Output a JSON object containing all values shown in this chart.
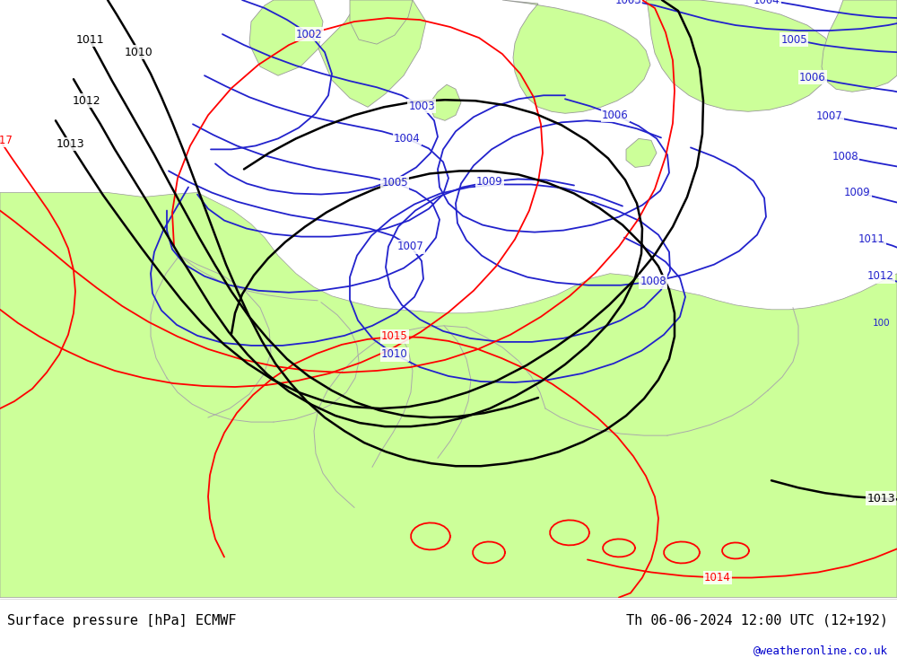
{
  "title_left": "Surface pressure [hPa] ECMWF",
  "title_right": "Th 06-06-2024 12:00 UTC (12+192)",
  "credit": "@weatheronline.co.uk",
  "bg_sea_color": "#d4d4d4",
  "bg_land_color": "#ccff99",
  "land_outline_color": "#999999",
  "isobar_blue": "#2222cc",
  "isobar_black": "#000000",
  "isobar_red": "#ff0000",
  "text_black": "#000000",
  "text_blue": "#0000cc",
  "bottom_bg": "#ffffff",
  "fig_width": 10.0,
  "fig_height": 7.33,
  "dpi": 100,
  "lw_blue": 1.3,
  "lw_black": 1.8,
  "lw_red": 1.3,
  "label_fs": 8.5
}
